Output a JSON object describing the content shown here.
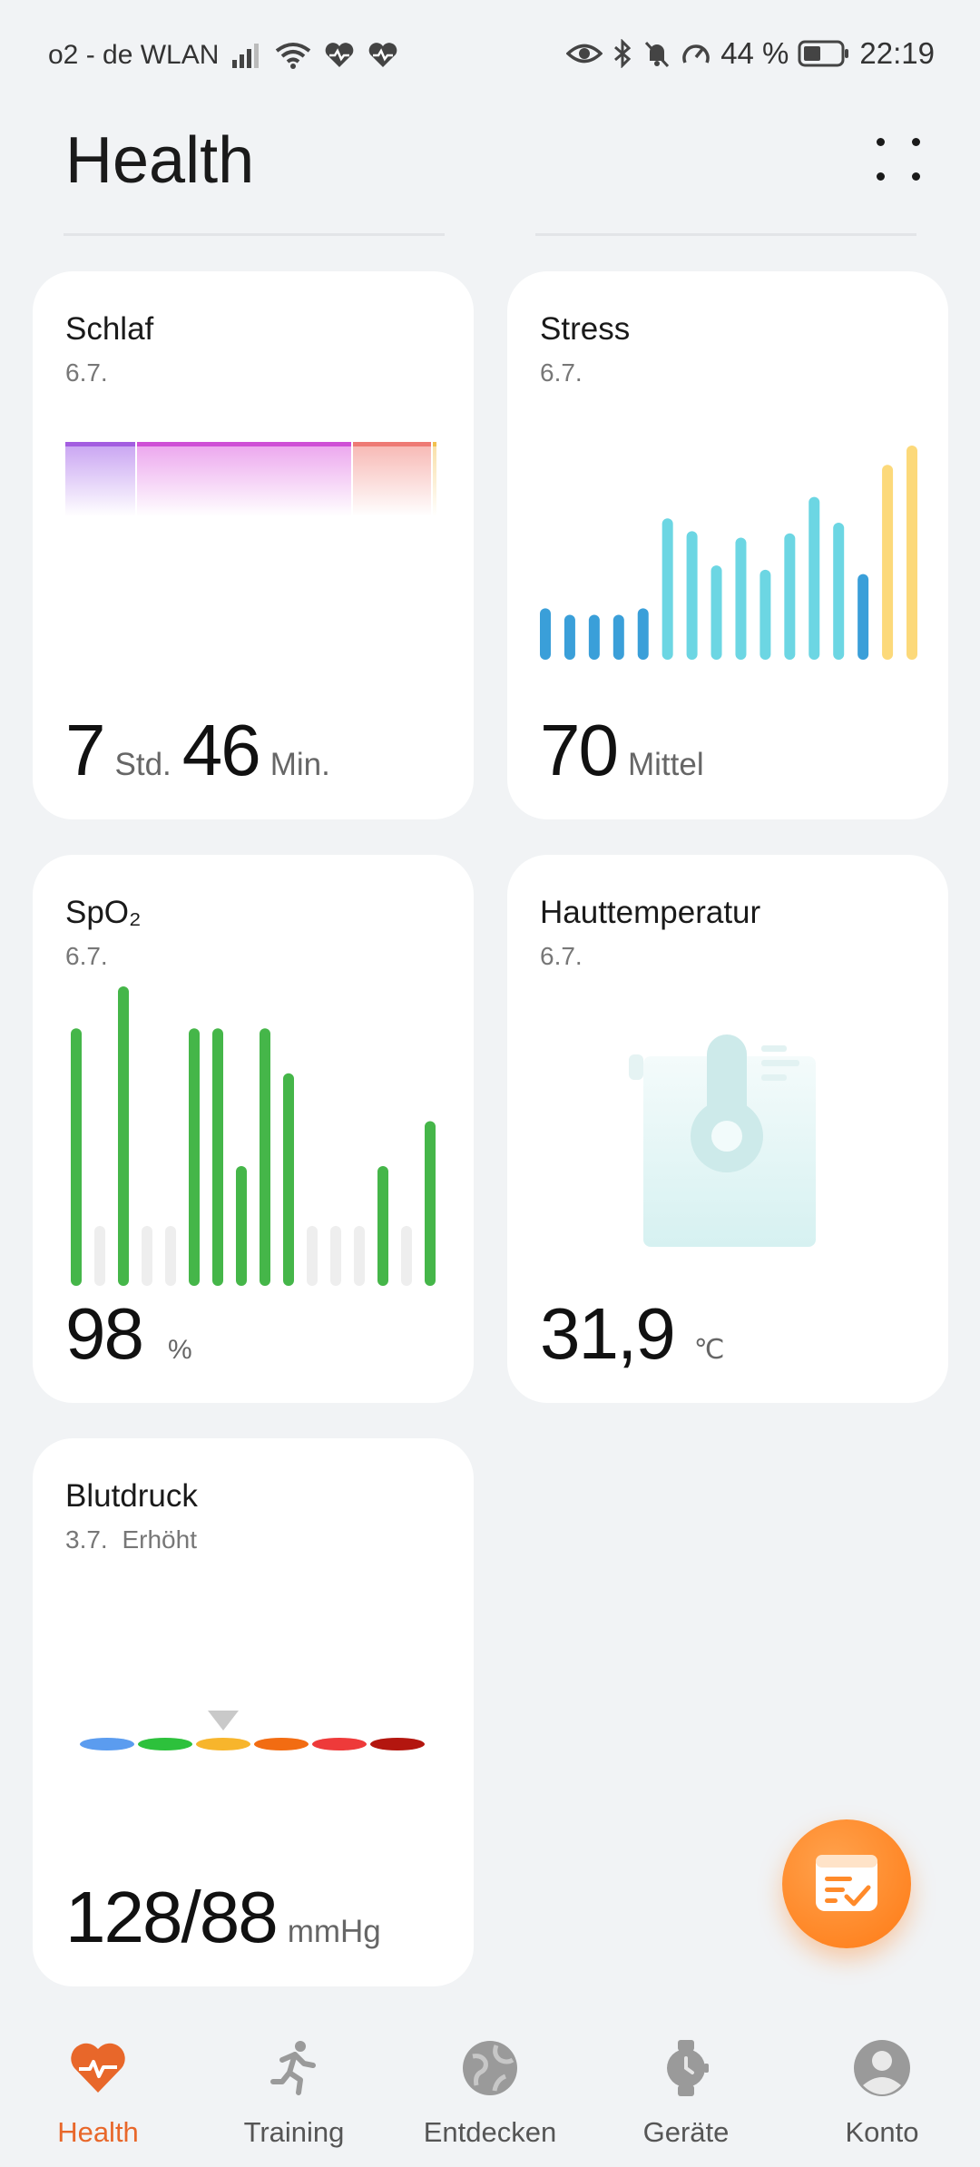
{
  "status_bar": {
    "carrier": "o2 - de WLAN",
    "battery": "44 %",
    "time": "22:19"
  },
  "header": {
    "title": "Health"
  },
  "cards": {
    "schlaf": {
      "title": "Schlaf",
      "date": "6.7.",
      "hours": "7",
      "hours_unit": "Std.",
      "minutes": "46",
      "minutes_unit": "Min.",
      "colors": [
        "#a35de0",
        "#cf4fd6",
        "#ee7a74",
        "#f2c14e"
      ]
    },
    "stress": {
      "title": "Stress",
      "date": "6.7.",
      "value": "70",
      "label": "Mittel",
      "bars": [
        {
          "level": 0.24,
          "color": "#3a9fd9"
        },
        {
          "level": 0.21,
          "color": "#3a9fd9"
        },
        {
          "level": 0.21,
          "color": "#3a9fd9"
        },
        {
          "level": 0.21,
          "color": "#3a9fd9"
        },
        {
          "level": 0.24,
          "color": "#3a9fd9"
        },
        {
          "level": 0.66,
          "color": "#6cd6e3"
        },
        {
          "level": 0.6,
          "color": "#6cd6e3"
        },
        {
          "level": 0.44,
          "color": "#6cd6e3"
        },
        {
          "level": 0.57,
          "color": "#6cd6e3"
        },
        {
          "level": 0.42,
          "color": "#6cd6e3"
        },
        {
          "level": 0.59,
          "color": "#6cd6e3"
        },
        {
          "level": 0.76,
          "color": "#6cd6e3"
        },
        {
          "level": 0.64,
          "color": "#6cd6e3"
        },
        {
          "level": 0.4,
          "color": "#3a9fd9"
        },
        {
          "level": 0.91,
          "color": "#fcd97a"
        },
        {
          "level": 1.0,
          "color": "#fcd97a"
        }
      ]
    },
    "spo2": {
      "title": "SpO₂",
      "date": "6.7.",
      "value": "98",
      "unit": "%",
      "bars": [
        {
          "level": 0.86,
          "on": true
        },
        {
          "level": 0.2,
          "on": false
        },
        {
          "level": 1.0,
          "on": true
        },
        {
          "level": 0.2,
          "on": false
        },
        {
          "level": 0.2,
          "on": false
        },
        {
          "level": 0.86,
          "on": true
        },
        {
          "level": 0.86,
          "on": true
        },
        {
          "level": 0.4,
          "on": true
        },
        {
          "level": 0.86,
          "on": true
        },
        {
          "level": 0.71,
          "on": true
        },
        {
          "level": 0.2,
          "on": false
        },
        {
          "level": 0.2,
          "on": false
        },
        {
          "level": 0.2,
          "on": false
        },
        {
          "level": 0.4,
          "on": true
        },
        {
          "level": 0.2,
          "on": false
        },
        {
          "level": 0.55,
          "on": true
        }
      ],
      "on_color": "#45b649",
      "off_color": "#eeeeee"
    },
    "haut": {
      "title": "Hauttemperatur",
      "date": "6.7.",
      "value": "31,9",
      "unit": "℃",
      "icon": "thermometer-icon"
    },
    "blut": {
      "title": "Blutdruck",
      "date": "3.7.",
      "status": "Erhöht",
      "value": "128/88",
      "unit": "mmHg",
      "scale_colors": [
        "#5b9cef",
        "#2dc13c",
        "#f7b52c",
        "#f26c12",
        "#ee3a3a",
        "#b3160f"
      ],
      "marker_segment": 2
    }
  },
  "tabs": [
    {
      "label": "Health",
      "icon": "heart-pulse-icon",
      "active": true
    },
    {
      "label": "Training",
      "icon": "running-person-icon",
      "active": false
    },
    {
      "label": "Entdecken",
      "icon": "globe-icon",
      "active": false
    },
    {
      "label": "Geräte",
      "icon": "watch-icon",
      "active": false
    },
    {
      "label": "Konto",
      "icon": "person-icon",
      "active": false
    }
  ],
  "fab": {
    "icon": "checklist-icon"
  },
  "accent_color": "#e8672a"
}
